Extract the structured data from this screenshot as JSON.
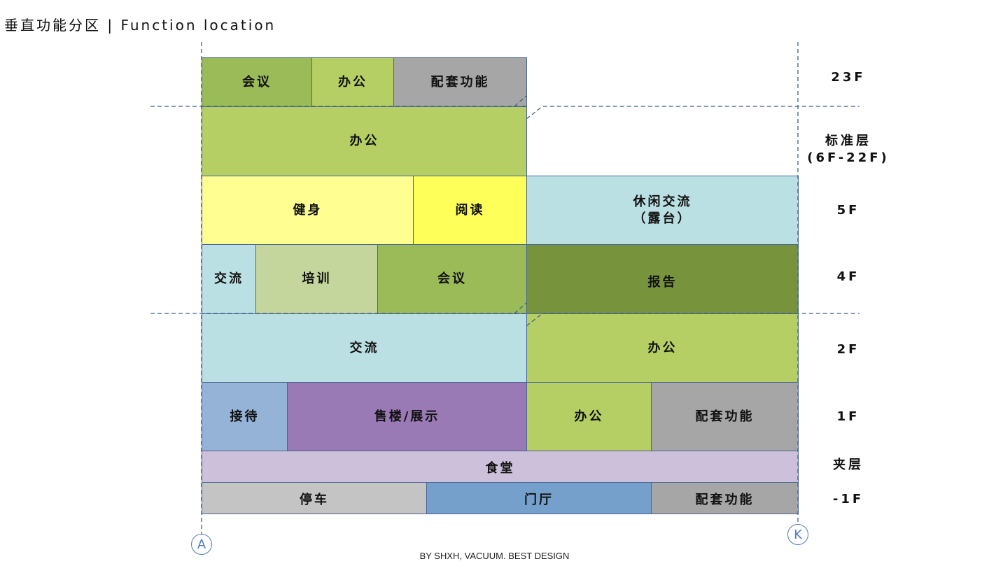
{
  "title": "垂直功能分区 |  Function location",
  "blocks": {
    "f23_meeting": {
      "label": "会议",
      "color": "#9bbb59"
    },
    "f23_office": {
      "label": "办公",
      "color": "#b5cf64"
    },
    "f23_support": {
      "label": "配套功能",
      "color": "#a6a6a6"
    },
    "std_office": {
      "label": "办公",
      "color": "#b5cf64"
    },
    "f5_gym": {
      "label": "健身",
      "color": "#ffff91"
    },
    "f5_reading": {
      "label": "阅读",
      "color": "#ffff5a"
    },
    "f5_leisure": {
      "label": "休闲交流\n（露台）",
      "color": "#bbe0e3"
    },
    "f4_exchange": {
      "label": "交流",
      "color": "#bbe0e3"
    },
    "f4_training": {
      "label": "培训",
      "color": "#c4d69b"
    },
    "f4_meeting": {
      "label": "会议",
      "color": "#9bbb59"
    },
    "f4_report": {
      "label": "报告",
      "color": "#77933c"
    },
    "f2_exchange": {
      "label": "交流",
      "color": "#bbe0e3"
    },
    "f2_office": {
      "label": "办公",
      "color": "#b5cf64"
    },
    "f1_reception": {
      "label": "接待",
      "color": "#95b3d7"
    },
    "f1_sales": {
      "label": "售楼/展示",
      "color": "#9a7ab4"
    },
    "f1_office": {
      "label": "办公",
      "color": "#b5cf64"
    },
    "f1_support": {
      "label": "配套功能",
      "color": "#a6a6a6"
    },
    "mezz_canteen": {
      "label": "食堂",
      "color": "#ccc0da"
    },
    "b1_parking": {
      "label": "停车",
      "color": "#c4c4c4"
    },
    "b1_lobby": {
      "label": "门厅",
      "color": "#75a0cc"
    },
    "b1_support": {
      "label": "配套功能",
      "color": "#a6a6a6"
    }
  },
  "floors": [
    "23F",
    "标准层\n(6F-22F)",
    "5F",
    "4F",
    "2F",
    "1F",
    "夹层",
    "-1F"
  ],
  "axes": [
    "A",
    "K"
  ],
  "credit": "BY SHXH, VACUUM. BEST DESIGN",
  "line_color": "#3f5f8f"
}
